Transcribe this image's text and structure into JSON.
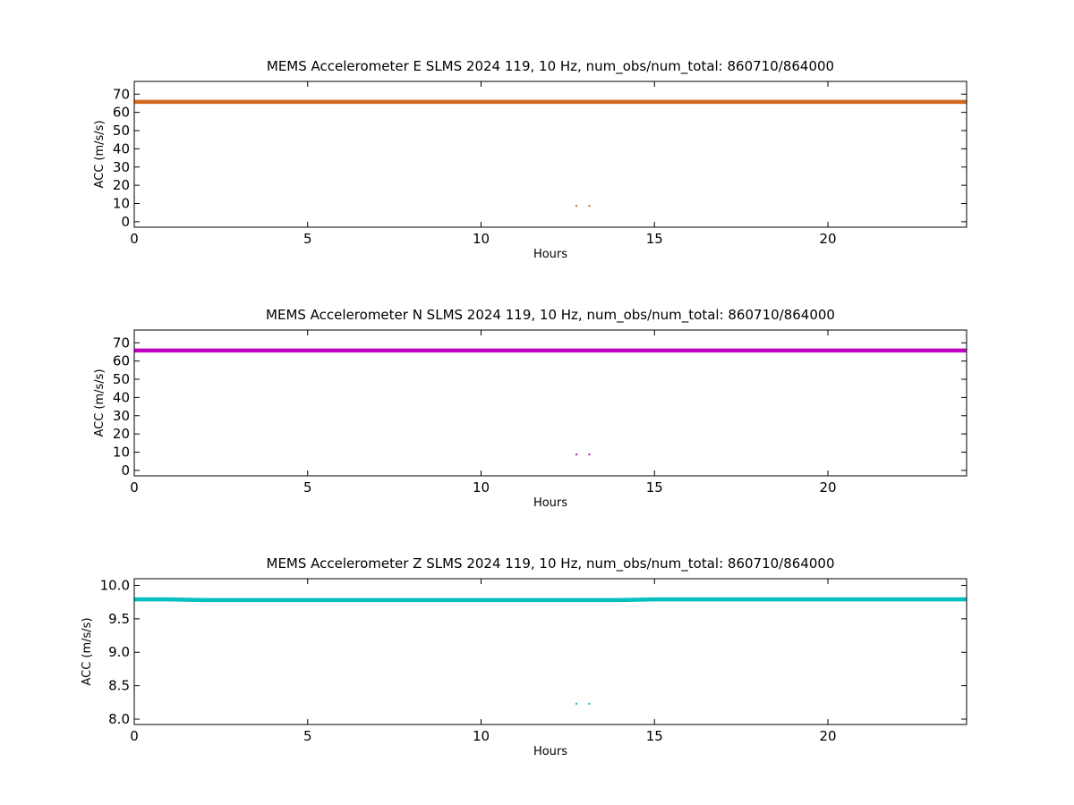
{
  "chart_data": [
    {
      "type": "scatter",
      "title": "MEMS Accelerometer E SLMS 2024 119, 10 Hz, num_obs/num_total: 860710/864000",
      "xlabel": "Hours",
      "ylabel": "ACC (m/s/s)",
      "xlim": [
        0,
        24
      ],
      "ylim": [
        -3,
        77
      ],
      "xticks": [
        0,
        5,
        10,
        15,
        20
      ],
      "yticks": [
        0,
        10,
        20,
        30,
        40,
        50,
        60,
        70
      ],
      "grid": false,
      "color": "#d2691e",
      "series": [
        {
          "x": [
            0,
            24
          ],
          "y": [
            65.8,
            65.8
          ],
          "kind": "band"
        },
        {
          "x": [
            12.75,
            13.12
          ],
          "y": [
            8.7,
            8.7
          ],
          "kind": "points"
        }
      ]
    },
    {
      "type": "scatter",
      "title": "MEMS Accelerometer N SLMS 2024 119, 10 Hz, num_obs/num_total: 860710/864000",
      "xlabel": "Hours",
      "ylabel": "ACC (m/s/s)",
      "xlim": [
        0,
        24
      ],
      "ylim": [
        -3,
        77
      ],
      "xticks": [
        0,
        5,
        10,
        15,
        20
      ],
      "yticks": [
        0,
        10,
        20,
        30,
        40,
        50,
        60,
        70
      ],
      "grid": false,
      "color": "#bf00bf",
      "series": [
        {
          "x": [
            0,
            24
          ],
          "y": [
            65.8,
            65.8
          ],
          "kind": "band"
        },
        {
          "x": [
            12.75,
            13.12
          ],
          "y": [
            8.7,
            8.7
          ],
          "kind": "points"
        }
      ]
    },
    {
      "type": "scatter",
      "title": "MEMS Accelerometer Z SLMS 2024 119, 10 Hz, num_obs/num_total: 860710/864000",
      "xlabel": "Hours",
      "ylabel": "ACC (m/s/s)",
      "xlim": [
        0,
        24
      ],
      "ylim": [
        7.92,
        10.1
      ],
      "xticks": [
        0,
        5,
        10,
        15,
        20
      ],
      "yticks": [
        8.0,
        8.5,
        9.0,
        9.5,
        10.0
      ],
      "ytick_labels": [
        "8.0",
        "8.5",
        "9.0",
        "9.5",
        "10.0"
      ],
      "grid": false,
      "color": "#00bfbf",
      "series": [
        {
          "x": [
            0,
            1,
            2,
            4,
            8,
            12,
            14,
            15,
            17,
            19,
            20,
            24
          ],
          "y": [
            9.79,
            9.79,
            9.78,
            9.78,
            9.78,
            9.78,
            9.78,
            9.79,
            9.79,
            9.79,
            9.79,
            9.79
          ],
          "kind": "band"
        },
        {
          "x": [
            12.75,
            13.12
          ],
          "y": [
            8.23,
            8.23
          ],
          "kind": "points"
        }
      ]
    }
  ]
}
